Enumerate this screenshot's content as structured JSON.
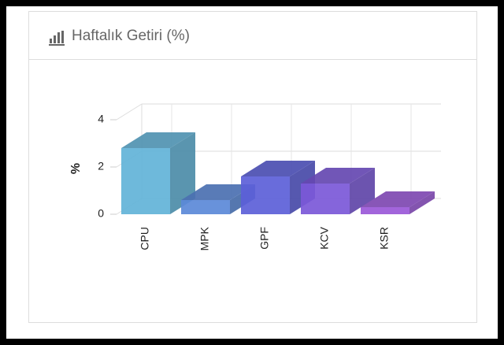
{
  "chart_data": {
    "type": "bar",
    "title": "Haftalık Getiri (%)",
    "y_label": "%",
    "categories": [
      "CPU",
      "MPK",
      "GPF",
      "KCV",
      "KSR"
    ],
    "values": [
      2.8,
      0.6,
      1.6,
      1.3,
      0.3
    ],
    "colors": [
      "#62b3d8",
      "#5b89d8",
      "#5c5fd8",
      "#7b58d8",
      "#9a58d8"
    ],
    "ylim": [
      0,
      4
    ],
    "yticks": [
      0,
      2,
      4
    ],
    "grid": true
  }
}
